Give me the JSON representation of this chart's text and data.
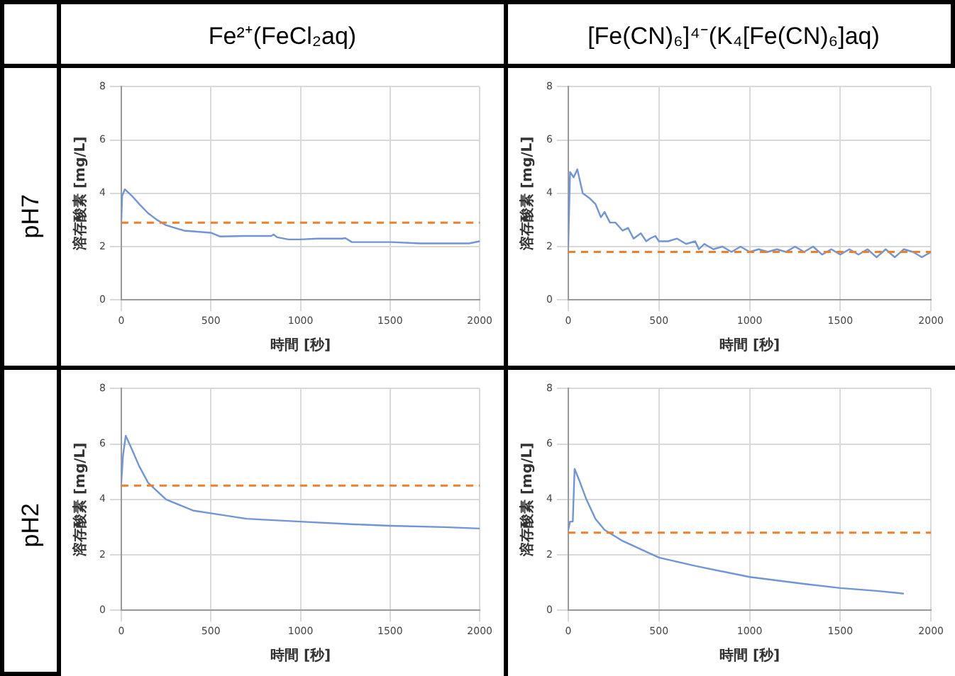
{
  "chart_data": [
    {
      "type": "line",
      "title": "Fe²⁺(FeCl₂aq)",
      "subtitle": "pH7",
      "xlabel": "時間 [秒]",
      "ylabel": "溶存酸素 [mg/L]",
      "xlim": [
        0,
        2000
      ],
      "xticks": [
        0,
        500,
        1000,
        1500,
        2000
      ],
      "ylim": [
        0,
        8
      ],
      "yticks": [
        0,
        2,
        4,
        6,
        8
      ],
      "grid": true,
      "marker": "none",
      "series": [
        {
          "color": "#6f95d6",
          "x": [
            0,
            5,
            20,
            60,
            100,
            150,
            200,
            250,
            350,
            500,
            550,
            687,
            837,
            850,
            870,
            932,
            1000,
            1095,
            1232,
            1250,
            1286,
            1504,
            1668,
            1940,
            2000
          ],
          "values": [
            2.9,
            3.9,
            4.15,
            3.9,
            3.6,
            3.25,
            3.0,
            2.8,
            2.6,
            2.52,
            2.38,
            2.4,
            2.4,
            2.45,
            2.35,
            2.27,
            2.27,
            2.3,
            2.3,
            2.32,
            2.17,
            2.17,
            2.12,
            2.12,
            2.2
          ]
        }
      ],
      "ref_lines": [
        {
          "axis": "y",
          "value": 2.9,
          "color": "#f07f2a",
          "line_style": "dashed"
        }
      ]
    },
    {
      "type": "line",
      "title": "[Fe(CN)₆]⁴⁻(K₄[Fe(CN)₆]aq)",
      "xlabel": "時間 [秒]",
      "ylabel": "溶存酸素 [mg/L]",
      "xlim": [
        0,
        2000
      ],
      "xticks": [
        0,
        500,
        1000,
        1500,
        2000
      ],
      "ylim": [
        0,
        8
      ],
      "yticks": [
        0,
        2,
        4,
        6,
        8
      ],
      "grid": true,
      "marker": "none",
      "series": [
        {
          "color": "#6f95d6",
          "x": [
            0,
            10,
            30,
            50,
            80,
            120,
            150,
            180,
            200,
            230,
            260,
            300,
            330,
            360,
            400,
            430,
            450,
            480,
            500,
            550,
            600,
            650,
            700,
            720,
            750,
            800,
            850,
            900,
            950,
            1000,
            1050,
            1100,
            1150,
            1200,
            1250,
            1300,
            1350,
            1400,
            1450,
            1500,
            1550,
            1600,
            1650,
            1700,
            1750,
            1800,
            1850,
            1900,
            1950,
            2000
          ],
          "values": [
            2.0,
            4.8,
            4.6,
            4.9,
            4.0,
            3.8,
            3.6,
            3.1,
            3.3,
            2.9,
            2.9,
            2.6,
            2.7,
            2.3,
            2.5,
            2.2,
            2.3,
            2.4,
            2.2,
            2.2,
            2.3,
            2.1,
            2.2,
            1.9,
            2.1,
            1.9,
            2.0,
            1.8,
            2.0,
            1.8,
            1.9,
            1.8,
            1.9,
            1.8,
            2.0,
            1.8,
            2.0,
            1.7,
            1.9,
            1.7,
            1.9,
            1.7,
            1.9,
            1.6,
            1.9,
            1.6,
            1.9,
            1.8,
            1.6,
            1.8
          ]
        }
      ],
      "ref_lines": [
        {
          "axis": "y",
          "value": 1.8,
          "color": "#f07f2a",
          "line_style": "dashed"
        }
      ]
    },
    {
      "type": "line",
      "subtitle": "pH2",
      "xlabel": "時間 [秒]",
      "ylabel": "溶存酸素 [mg/L]",
      "xlim": [
        0,
        2000
      ],
      "xticks": [
        0,
        500,
        1000,
        1500,
        2000
      ],
      "ylim": [
        0,
        8
      ],
      "yticks": [
        0,
        2,
        4,
        6,
        8
      ],
      "grid": true,
      "marker": "none",
      "series": [
        {
          "color": "#6f95d6",
          "x": [
            0,
            10,
            25,
            60,
            100,
            150,
            250,
            400,
            500,
            700,
            1000,
            1300,
            1500,
            1800,
            2000
          ],
          "values": [
            4.6,
            5.6,
            6.3,
            5.8,
            5.2,
            4.6,
            4.0,
            3.6,
            3.5,
            3.3,
            3.2,
            3.1,
            3.05,
            3.0,
            2.95
          ]
        }
      ],
      "ref_lines": [
        {
          "axis": "y",
          "value": 4.5,
          "color": "#f07f2a",
          "line_style": "dashed"
        }
      ]
    },
    {
      "type": "line",
      "xlabel": "時間 [秒]",
      "ylabel": "溶存酸素 [mg/L]",
      "xlim": [
        0,
        2000
      ],
      "xticks": [
        0,
        500,
        1000,
        1500,
        2000
      ],
      "ylim": [
        0,
        8
      ],
      "yticks": [
        0,
        2,
        4,
        6,
        8
      ],
      "grid": true,
      "marker": "none",
      "series": [
        {
          "color": "#6f95d6",
          "x": [
            0,
            10,
            25,
            35,
            60,
            100,
            150,
            200,
            300,
            500,
            700,
            1000,
            1300,
            1500,
            1700,
            1850
          ],
          "values": [
            2.9,
            3.2,
            3.2,
            5.1,
            4.7,
            4.0,
            3.3,
            2.9,
            2.5,
            1.9,
            1.6,
            1.2,
            0.95,
            0.8,
            0.7,
            0.6
          ]
        }
      ],
      "ref_lines": [
        {
          "axis": "y",
          "value": 2.8,
          "color": "#f07f2a",
          "line_style": "dashed"
        }
      ]
    }
  ]
}
